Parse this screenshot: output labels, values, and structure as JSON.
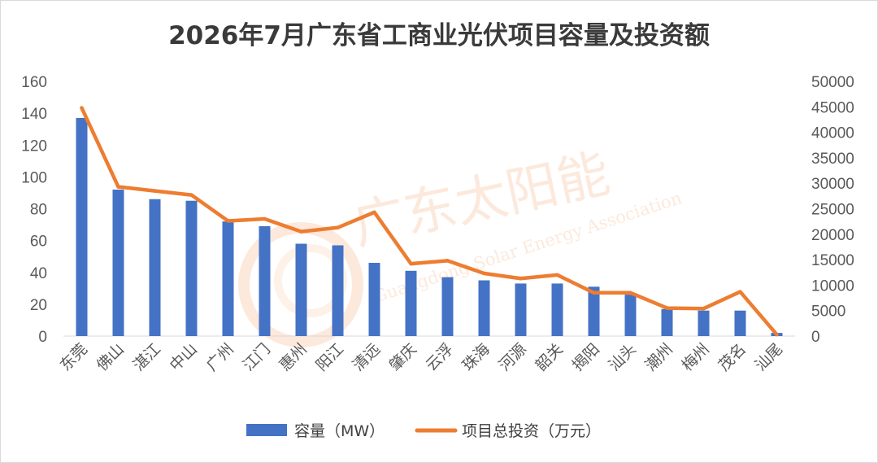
{
  "chart_data": {
    "type": "bar",
    "title": "2026年7月广东省工商业光伏项目容量及投资额",
    "categories": [
      "东莞",
      "佛山",
      "湛江",
      "中山",
      "广州",
      "江门",
      "惠州",
      "阳江",
      "清远",
      "肇庆",
      "云浮",
      "珠海",
      "河源",
      "韶关",
      "揭阳",
      "汕头",
      "潮州",
      "梅州",
      "茂名",
      "汕尾"
    ],
    "series": [
      {
        "name": "容量（MW）",
        "type": "bar",
        "axis": "left",
        "color": "#4472c4",
        "values": [
          137,
          92,
          86,
          85,
          72,
          69,
          58,
          57,
          46,
          41,
          37,
          35,
          33,
          33,
          31,
          26,
          17,
          16,
          16,
          2
        ]
      },
      {
        "name": "项目总投资（万元）",
        "type": "line",
        "axis": "right",
        "color": "#ed7d31",
        "values": [
          44800,
          29300,
          28500,
          27700,
          22600,
          23000,
          20500,
          21300,
          24300,
          14200,
          14800,
          12300,
          11300,
          12000,
          8500,
          8500,
          5500,
          5400,
          8700,
          300
        ]
      }
    ],
    "y_left": {
      "min": 0,
      "max": 160,
      "ticks": [
        0,
        20,
        40,
        60,
        80,
        100,
        120,
        140,
        160
      ]
    },
    "y_right": {
      "min": 0,
      "max": 50000,
      "ticks": [
        0,
        5000,
        10000,
        15000,
        20000,
        25000,
        30000,
        35000,
        40000,
        45000,
        50000
      ]
    },
    "grid": false,
    "legend_position": "bottom"
  },
  "watermark": {
    "text_cn": "广东太阳能",
    "text_en": "Guangdong Solar Energy Association"
  }
}
